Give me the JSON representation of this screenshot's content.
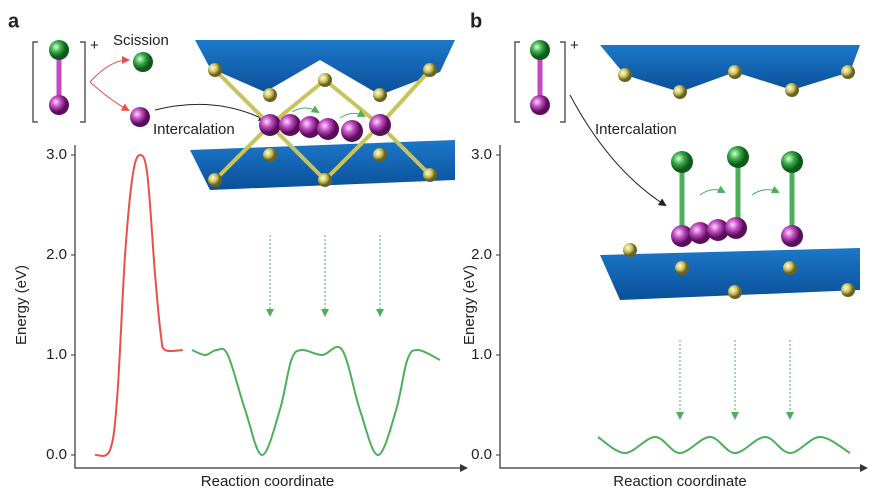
{
  "chart_data": [
    {
      "type": "line",
      "panel_label": "a",
      "y_label": "Energy (eV)",
      "x_label": "Reaction coordinate",
      "annotations": [
        "+",
        "Scission",
        "Intercalation"
      ],
      "xlim": [
        0,
        100
      ],
      "ylim": [
        0,
        3
      ],
      "yticks": [
        {
          "value": 0,
          "label": "0.0"
        },
        {
          "value": 1,
          "label": "1.0"
        },
        {
          "value": 2,
          "label": "2.0"
        },
        {
          "value": 3,
          "label": "3.0"
        }
      ],
      "series": [
        {
          "color": "#e8504a",
          "x": [
            5.2,
            9.1,
            11,
            13,
            15,
            16.9,
            18.8,
            20.8,
            22.3,
            23.4,
            28
          ],
          "values": [
            0,
            0.05,
            0.6,
            2.0,
            2.8,
            3.0,
            2.8,
            1.8,
            1.2,
            1.05,
            1.05
          ]
        },
        {
          "color": "#4caf5a",
          "x": [
            30.4,
            33.8,
            36.8,
            39.7,
            44.2,
            48.6,
            53.2,
            56.2,
            58.9,
            64.2,
            69.4,
            74.0,
            78.7,
            83.4,
            86.3,
            89.1,
            94.8
          ],
          "values": [
            1.05,
            1.0,
            1.05,
            1.0,
            0.45,
            0.0,
            0.45,
            0.95,
            1.05,
            1.0,
            1.05,
            0.45,
            0.0,
            0.45,
            0.95,
            1.05,
            0.95
          ]
        }
      ]
    },
    {
      "type": "line",
      "panel_label": "b",
      "y_label": "Energy (eV)",
      "x_label": "Reaction coordinate",
      "annotations": [
        "+",
        "Intercalation"
      ],
      "xlim": [
        0,
        100
      ],
      "ylim": [
        0,
        3
      ],
      "yticks": [
        {
          "value": 0,
          "label": "0.0"
        },
        {
          "value": 1,
          "label": "1.0"
        },
        {
          "value": 2,
          "label": "2.0"
        },
        {
          "value": 3,
          "label": "3.0"
        }
      ],
      "series": [
        {
          "color": "#4caf5a",
          "x": [
            27.2,
            34.7,
            43.1,
            50,
            58.3,
            65.3,
            73.6,
            80.6,
            88.9,
            97.2
          ],
          "values": [
            0.18,
            0.02,
            0.18,
            0.02,
            0.18,
            0.02,
            0.18,
            0.02,
            0.18,
            0.02
          ]
        }
      ]
    }
  ]
}
